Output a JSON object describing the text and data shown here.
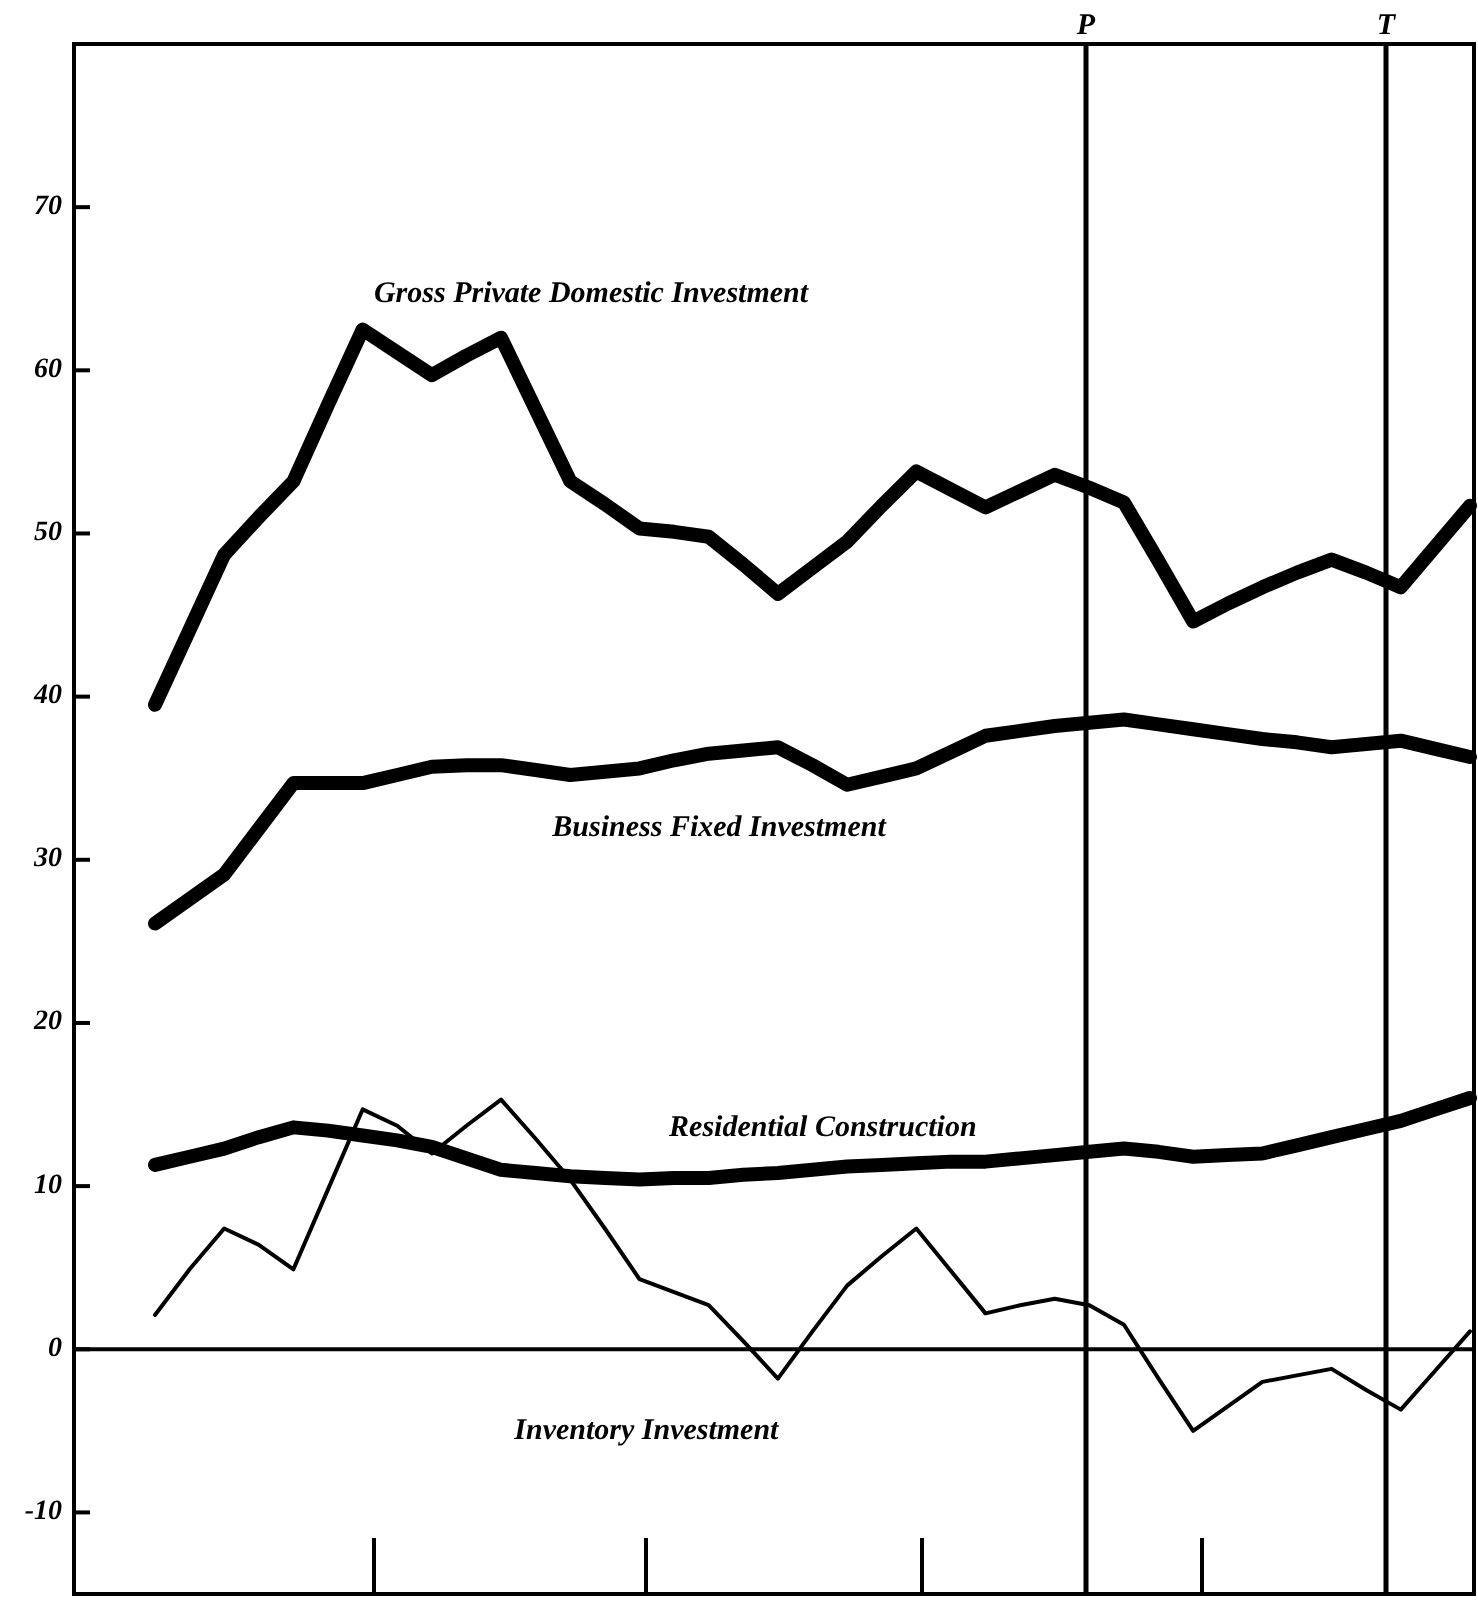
{
  "chart_data": {
    "type": "line",
    "categories": [
      null,
      null,
      null,
      null,
      null,
      null,
      null,
      null,
      null,
      null,
      null,
      null,
      null,
      null,
      null,
      null,
      null,
      null,
      null,
      null,
      null,
      null,
      null,
      null,
      null,
      null,
      null,
      null,
      null,
      null,
      null,
      null,
      null,
      null,
      null,
      null,
      null,
      null,
      null
    ],
    "series": [
      {
        "name": "Gross Private Domestic Investment",
        "color": "#000000",
        "values": [
          39.5,
          44.1,
          48.7,
          51.0,
          53.2,
          57.9,
          62.5,
          61.1,
          59.7,
          60.9,
          62,
          57.6,
          53.2,
          51.8,
          50.3,
          50.1,
          49.8,
          48.1,
          46.3,
          47.9,
          49.5,
          51.7,
          53.8,
          52.7,
          51.6,
          52.6,
          53.6,
          52.8,
          51.9,
          48.3,
          44.6,
          45.7,
          46.7,
          47.6,
          48.4,
          47.6,
          46.7,
          49.2,
          51.7
        ]
      },
      {
        "name": "Business Fixed Investment",
        "color": "#000000",
        "values": [
          26.1,
          27.6,
          29.1,
          31.9,
          34.7,
          34.7,
          34.7,
          35.2,
          35.7,
          35.8,
          35.8,
          35.5,
          35.2,
          35.4,
          35.6,
          36.1,
          36.5,
          36.7,
          36.9,
          35.8,
          34.6,
          35.1,
          35.6,
          36.6,
          37.6,
          37.9,
          38.2,
          38.4,
          38.6,
          38.3,
          38.0,
          37.7,
          37.4,
          37.2,
          36.9,
          37.1,
          37.3,
          36.8,
          36.3
        ]
      },
      {
        "name": "Residential Construction",
        "color": "#000000",
        "values": [
          11.3,
          11.8,
          12.3,
          13.0,
          13.6,
          13.4,
          13.1,
          12.8,
          12.4,
          11.7,
          11.0,
          10.8,
          10.6,
          10.5,
          10.4,
          10.5,
          10.5,
          10.7,
          10.8,
          11.0,
          11.2,
          11.3,
          11.4,
          11.5,
          11.5,
          11.7,
          11.9,
          12.1,
          12.3,
          12.1,
          11.8,
          11.9,
          12.0,
          12.5,
          13.0,
          13.5,
          14.0,
          14.7,
          15.4
        ]
      },
      {
        "name": "Inventory Investment",
        "color": "#000000",
        "values": [
          2.1,
          4.9,
          7.4,
          6.4,
          4.9,
          9.8,
          14.7,
          13.7,
          12.0,
          13.7,
          15.3,
          12.9,
          10.4,
          7.4,
          4.3,
          3.5,
          2.7,
          0.5,
          -1.8,
          1.1,
          3.9,
          5.7,
          7.4,
          4.8,
          2.2,
          2.7,
          3.1,
          2.7,
          1.5,
          -1.8,
          -5,
          -3.5,
          -2,
          -1.6,
          -1.2,
          -2.5,
          -3.7,
          -1.3,
          1.1
        ]
      }
    ],
    "ylim": [
      -15,
      80
    ],
    "yticks": [
      -10,
      0,
      10,
      20,
      30,
      40,
      50,
      60,
      70
    ],
    "ref_lines": [
      {
        "axis": "y",
        "value": 0,
        "label": null
      }
    ],
    "annotations": [
      "P",
      "T"
    ],
    "marker": "none",
    "line_style": "solid",
    "grid": false,
    "legend": false
  }
}
